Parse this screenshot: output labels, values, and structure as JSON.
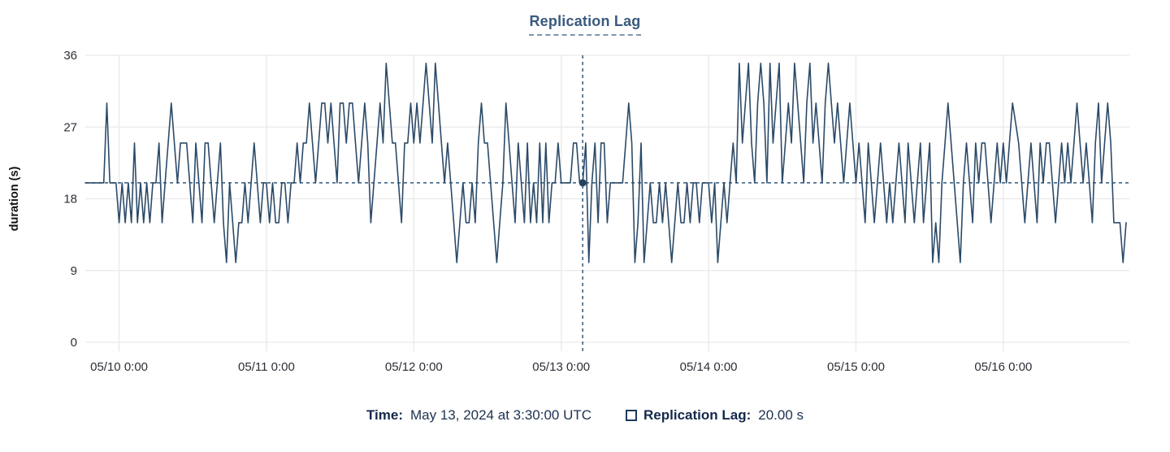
{
  "colors": {
    "line": "#2b4a68",
    "crosshair": "#30587c",
    "dot": "#26425f",
    "grid": "#e9e9e9",
    "title": "#3a5a7e",
    "title_underline": "#7f96ad",
    "tooltip_label": "#14294a",
    "tooltip_value": "#1d3250",
    "axis_label": "#2b2f36"
  },
  "readout": {
    "time_label": "Time:",
    "time_value": "May 13, 2024 at 3:30:00 UTC",
    "series_label": "Replication Lag:",
    "series_value": "20.00 s",
    "swatch_icon": "square-outline"
  },
  "chart_data": {
    "type": "line",
    "title": "Replication Lag",
    "ylabel": "duration (s)",
    "xlabel": "",
    "ylim": [
      0,
      36
    ],
    "y_ticks": [
      0,
      9,
      18,
      27,
      36
    ],
    "grid": "on",
    "points_per_day": 48,
    "x_ticks": [
      {
        "label": "05/10 0:00",
        "index": 11
      },
      {
        "label": "05/11 0:00",
        "index": 59
      },
      {
        "label": "05/12 0:00",
        "index": 107
      },
      {
        "label": "05/13 0:00",
        "index": 155
      },
      {
        "label": "05/14 0:00",
        "index": 203
      },
      {
        "label": "05/15 0:00",
        "index": 251
      },
      {
        "label": "05/16 0:00",
        "index": 299
      }
    ],
    "reference_line_y": 20,
    "crosshair": {
      "index": 162,
      "value": 20,
      "time": "May 13, 2024 at 3:30:00 UTC"
    },
    "values": [
      20,
      20,
      20,
      20,
      20,
      20,
      20,
      30,
      20,
      20,
      20,
      15,
      20,
      15,
      20,
      15,
      25,
      15,
      20,
      15,
      20,
      15,
      20,
      20,
      25,
      15,
      20,
      25,
      30,
      25,
      20,
      25,
      25,
      25,
      20,
      15,
      25,
      20,
      15,
      25,
      25,
      20,
      15,
      20,
      25,
      15,
      10,
      20,
      15,
      10,
      15,
      15,
      20,
      15,
      20,
      25,
      20,
      15,
      20,
      20,
      15,
      20,
      15,
      15,
      20,
      20,
      15,
      20,
      20,
      25,
      20,
      25,
      25,
      30,
      25,
      20,
      25,
      30,
      30,
      25,
      30,
      25,
      20,
      30,
      30,
      25,
      30,
      30,
      25,
      20,
      25,
      30,
      25,
      15,
      20,
      25,
      30,
      25,
      35,
      30,
      25,
      25,
      20,
      15,
      25,
      25,
      30,
      25,
      30,
      25,
      30,
      35,
      30,
      25,
      35,
      30,
      25,
      20,
      25,
      20,
      15,
      10,
      15,
      20,
      15,
      15,
      20,
      15,
      25,
      30,
      25,
      25,
      20,
      15,
      10,
      15,
      20,
      30,
      25,
      20,
      15,
      25,
      20,
      15,
      25,
      15,
      20,
      15,
      25,
      15,
      25,
      15,
      20,
      20,
      25,
      20,
      20,
      20,
      20,
      25,
      25,
      20,
      20,
      25,
      10,
      20,
      25,
      15,
      25,
      25,
      15,
      20,
      20,
      20,
      20,
      20,
      25,
      30,
      25,
      10,
      15,
      25,
      10,
      15,
      20,
      15,
      15,
      20,
      15,
      20,
      15,
      10,
      15,
      20,
      15,
      15,
      20,
      15,
      20,
      20,
      15,
      20,
      20,
      20,
      15,
      20,
      10,
      15,
      20,
      15,
      20,
      25,
      20,
      35,
      25,
      30,
      35,
      25,
      20,
      30,
      35,
      30,
      20,
      35,
      25,
      30,
      35,
      20,
      25,
      30,
      25,
      35,
      30,
      25,
      20,
      30,
      35,
      25,
      30,
      25,
      20,
      30,
      35,
      30,
      25,
      30,
      25,
      20,
      25,
      30,
      25,
      20,
      25,
      20,
      15,
      25,
      20,
      15,
      20,
      25,
      20,
      15,
      20,
      15,
      20,
      25,
      20,
      15,
      25,
      20,
      15,
      20,
      25,
      15,
      20,
      25,
      10,
      15,
      10,
      20,
      25,
      30,
      25,
      20,
      15,
      10,
      20,
      25,
      20,
      15,
      25,
      20,
      25,
      25,
      20,
      15,
      20,
      25,
      20,
      25,
      20,
      25,
      30,
      27.5,
      25,
      20,
      15,
      20,
      25,
      20,
      15,
      25,
      20,
      25,
      25,
      20,
      15,
      20,
      25,
      20,
      25,
      20,
      25,
      30,
      25,
      20,
      25,
      20,
      15,
      25,
      30,
      20,
      25,
      30,
      25,
      15,
      15,
      15,
      10,
      15
    ]
  }
}
